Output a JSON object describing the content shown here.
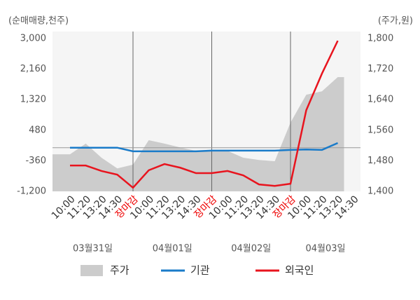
{
  "chart_data": {
    "type": "line",
    "y_axis_label": "(순매매량,천주)",
    "y2_axis_label": "(주가,원)",
    "categories": [
      "10:00",
      "11:20",
      "13:20",
      "14:30",
      "장마감",
      "10:00",
      "11:20",
      "13:20",
      "14:30",
      "장마감",
      "10:00",
      "11:20",
      "13:20",
      "14:30",
      "장마감",
      "10:00",
      "11:20",
      "13:20",
      "14:30"
    ],
    "dates": [
      "03월31일",
      "04월01일",
      "04월02일",
      "04월03일"
    ],
    "session_ends": [
      4,
      9,
      14
    ],
    "ylim": [
      -1200,
      3000
    ],
    "yticks": [
      {
        "value": 3000,
        "label": "3,000"
      },
      {
        "value": 2160,
        "label": "2,160"
      },
      {
        "value": 1320,
        "label": "1,320"
      },
      480,
      -360,
      {
        "value": -1200,
        "label": "-1,200"
      }
    ],
    "y2lim": [
      1400,
      1800
    ],
    "y2ticks": [
      {
        "value": 1800,
        "label": "1,800"
      },
      {
        "value": 1720,
        "label": "1,720"
      },
      {
        "value": 1640,
        "label": "1,640"
      },
      {
        "value": 1560,
        "label": "1,560"
      },
      {
        "value": 1480,
        "label": "1,480"
      },
      {
        "value": 1400,
        "label": "1,400"
      }
    ],
    "series": [
      {
        "name": "주가",
        "color": "#cccccc",
        "axis": "y2",
        "style": "area",
        "values": [
          1497,
          1525,
          1488,
          1460,
          1470,
          1534,
          1525,
          1515,
          1506,
          1506,
          1506,
          1488,
          1482,
          1479,
          1580,
          1653,
          1662,
          1699,
          null
        ]
      },
      {
        "name": "기관",
        "color": "#1a7bc9",
        "values": [
          0,
          0,
          0,
          0,
          -100,
          -100,
          -100,
          -100,
          -100,
          -80,
          -80,
          -80,
          -80,
          -80,
          -60,
          -50,
          -60,
          130,
          null
        ]
      },
      {
        "name": "외국인",
        "color": "#e8141e",
        "values": [
          -490,
          -490,
          -640,
          -740,
          -1100,
          -620,
          -450,
          -550,
          -700,
          -700,
          -640,
          -760,
          -1010,
          -1050,
          -990,
          1030,
          2040,
          2940,
          null
        ]
      }
    ]
  }
}
